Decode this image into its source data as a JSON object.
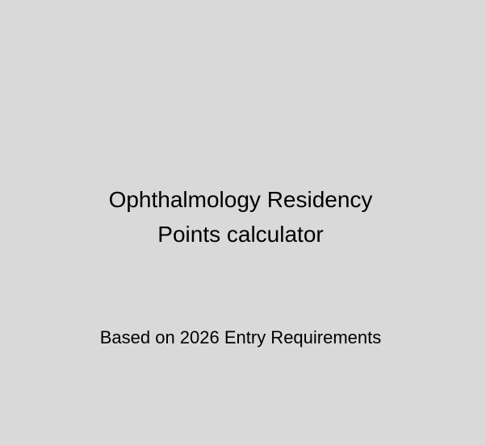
{
  "colors": {
    "background": "#d9d9d9",
    "text": "#000000"
  },
  "title": {
    "line1": "Ophthalmology Residency",
    "line2": "Points calculator"
  },
  "subtitle": "Based on 2026 Entry Requirements"
}
